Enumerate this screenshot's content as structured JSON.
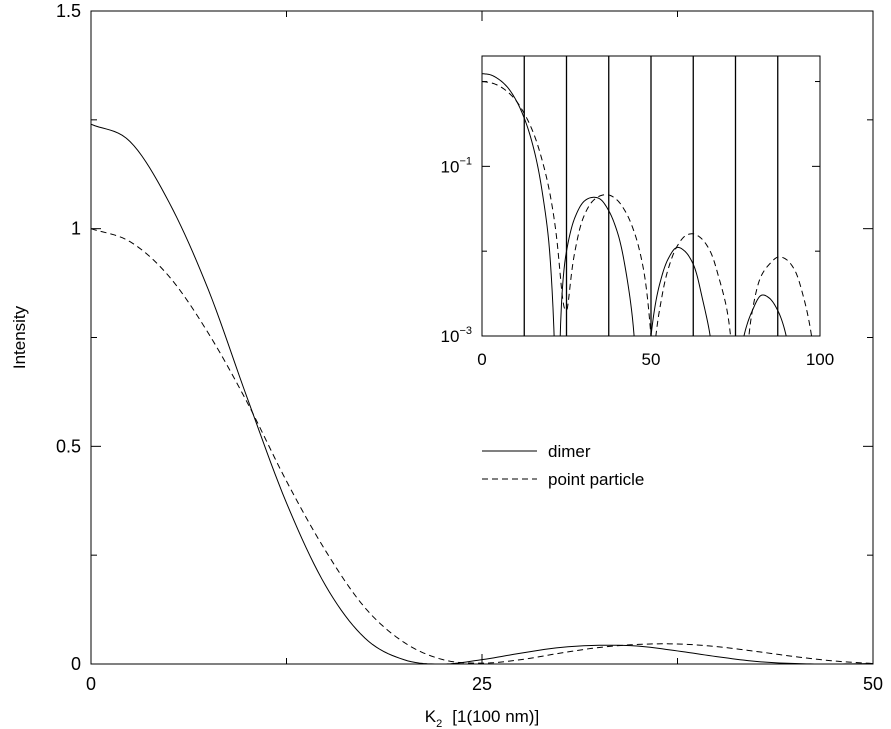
{
  "chart_data": [
    {
      "type": "line",
      "xlabel": "K",
      "xlabel_subscript": "2",
      "xlabel_units": "[1(100 nm)]",
      "ylabel": "Intensity",
      "xlim": [
        0,
        50
      ],
      "ylim": [
        0,
        1.5
      ],
      "x_ticks": [
        0,
        25,
        50
      ],
      "x_tick_labels": [
        "0",
        "25",
        "50"
      ],
      "y_ticks": [
        0,
        0.5,
        1,
        1.5
      ],
      "y_tick_labels": [
        "0",
        "0.5",
        "1",
        "1.5"
      ],
      "grid": false,
      "legend_position": "center-right",
      "series": [
        {
          "name": "dimer",
          "style": "solid",
          "color": "#000000",
          "x": [
            0,
            2.5,
            5,
            7.5,
            10,
            12.5,
            15,
            17.5,
            20,
            22.5,
            25,
            27.5,
            30,
            32.5,
            35,
            37.5,
            40,
            42.5,
            45,
            47.5,
            50
          ],
          "y": [
            1.24,
            1.2,
            1.06,
            0.86,
            0.61,
            0.37,
            0.18,
            0.06,
            0.01,
            0.0,
            0.01,
            0.025,
            0.038,
            0.043,
            0.041,
            0.03,
            0.017,
            0.006,
            0.001,
            0.0,
            0.001
          ]
        },
        {
          "name": "point particle",
          "style": "dashed",
          "color": "#000000",
          "x": [
            0,
            2.5,
            5,
            7.5,
            10,
            12.5,
            15,
            17.5,
            20,
            22.5,
            25,
            27.5,
            30,
            32.5,
            35,
            37.5,
            40,
            42.5,
            45,
            47.5,
            50
          ],
          "y": [
            1.0,
            0.97,
            0.89,
            0.76,
            0.6,
            0.42,
            0.26,
            0.13,
            0.05,
            0.01,
            0.002,
            0.01,
            0.025,
            0.038,
            0.045,
            0.046,
            0.04,
            0.029,
            0.017,
            0.007,
            0.001
          ]
        }
      ]
    },
    {
      "type": "line",
      "role": "inset",
      "xlim": [
        0,
        100
      ],
      "ylim": [
        0.001,
        2
      ],
      "y_scale": "log",
      "x_ticks": [
        0,
        50,
        100
      ],
      "x_tick_labels": [
        "0",
        "50",
        "100"
      ],
      "y_ticks": [
        0.001,
        0.1
      ],
      "y_tick_labels": [
        {
          "base": "10",
          "exp": "−3"
        },
        {
          "base": "10",
          "exp": "−1"
        }
      ],
      "grid": true,
      "grid_x": [
        12.5,
        25,
        37.5,
        50,
        62.5,
        75,
        87.5
      ],
      "series": [
        {
          "name": "dimer",
          "style": "solid",
          "color": "#000000",
          "x": [
            0,
            2.5,
            5,
            7.5,
            10,
            12.5,
            15,
            17.5,
            20,
            22.5,
            25,
            27.5,
            30,
            32.5,
            35,
            37.5,
            40,
            42.5,
            45,
            47.5,
            50,
            52.5,
            55,
            57.5,
            60,
            62.5,
            65,
            67.5,
            70,
            72.5,
            75,
            77.5,
            80,
            82.5,
            85,
            87.5,
            90,
            92.5,
            95,
            97.5,
            100
          ],
          "y": [
            1.24,
            1.2,
            1.06,
            0.86,
            0.61,
            0.37,
            0.18,
            0.06,
            0.01,
            0.0,
            0.01,
            0.025,
            0.038,
            0.043,
            0.041,
            0.03,
            0.017,
            0.006,
            0.001,
            0.0,
            0.001,
            0.004,
            0.008,
            0.011,
            0.01,
            0.007,
            0.003,
            0.001,
            0.0,
            0.0,
            0.0,
            0.001,
            0.002,
            0.003,
            0.0028,
            0.002,
            0.001,
            0.0,
            0.0,
            0.0,
            0.0
          ]
        },
        {
          "name": "point particle",
          "style": "dashed",
          "color": "#000000",
          "x": [
            0,
            2.5,
            5,
            7.5,
            10,
            12.5,
            15,
            17.5,
            20,
            22.5,
            25,
            27.5,
            30,
            32.5,
            35,
            37.5,
            40,
            42.5,
            45,
            47.5,
            50,
            52.5,
            55,
            57.5,
            60,
            62.5,
            65,
            67.5,
            70,
            72.5,
            75,
            77.5,
            80,
            82.5,
            85,
            87.5,
            90,
            92.5,
            95,
            97.5,
            100
          ],
          "y": [
            1.0,
            0.97,
            0.89,
            0.76,
            0.6,
            0.42,
            0.26,
            0.13,
            0.05,
            0.01,
            0.002,
            0.01,
            0.025,
            0.038,
            0.045,
            0.046,
            0.04,
            0.029,
            0.017,
            0.007,
            0.001,
            0.002,
            0.006,
            0.011,
            0.015,
            0.016,
            0.014,
            0.01,
            0.005,
            0.002,
            0.0,
            0.0,
            0.002,
            0.005,
            0.007,
            0.0085,
            0.008,
            0.006,
            0.003,
            0.001,
            0.0
          ]
        }
      ]
    }
  ]
}
